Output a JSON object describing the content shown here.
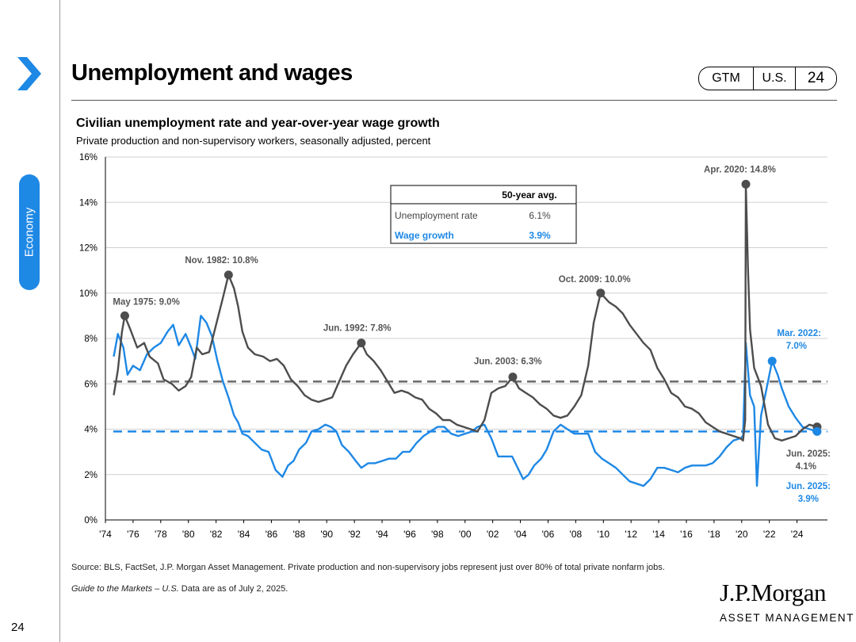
{
  "header": {
    "title": "Unemployment and wages",
    "section": "Economy",
    "tags": {
      "gtm": "GTM",
      "region": "U.S.",
      "page": "24"
    }
  },
  "chart_data": {
    "type": "line",
    "title": "Civilian unemployment rate and year-over-year wage growth",
    "subtitle": "Private production and non-supervisory workers, seasonally adjusted, percent",
    "xlabel": "",
    "ylabel": "",
    "xlim": [
      1974,
      2026.2
    ],
    "ylim": [
      0,
      16
    ],
    "y_ticks": [
      0,
      2,
      4,
      6,
      8,
      10,
      12,
      14,
      16
    ],
    "y_tick_labels": [
      "0%",
      "2%",
      "4%",
      "6%",
      "8%",
      "10%",
      "12%",
      "14%",
      "16%"
    ],
    "x_tick_labels": [
      "'74",
      "'76",
      "'78",
      "'80",
      "'82",
      "'84",
      "'86",
      "'88",
      "'90",
      "'92",
      "'94",
      "'96",
      "'98",
      "'00",
      "'02",
      "'04",
      "'06",
      "'08",
      "'10",
      "'12",
      "'14",
      "'16",
      "'18",
      "'20",
      "'22",
      "'24"
    ],
    "x_tick_years": [
      1974,
      1976,
      1978,
      1980,
      1982,
      1984,
      1986,
      1988,
      1990,
      1992,
      1994,
      1996,
      1998,
      2000,
      2002,
      2004,
      2006,
      2008,
      2010,
      2012,
      2014,
      2016,
      2018,
      2020,
      2022,
      2024
    ],
    "grid": true,
    "colors": {
      "unemployment": "#4d4d4d",
      "wages": "#1e88e5"
    },
    "series": [
      {
        "name": "Unemployment rate",
        "points": [
          [
            1974.6,
            5.5
          ],
          [
            1974.9,
            6.6
          ],
          [
            1975.2,
            8.3
          ],
          [
            1975.4,
            9.0
          ],
          [
            1975.8,
            8.4
          ],
          [
            1976.3,
            7.6
          ],
          [
            1976.8,
            7.8
          ],
          [
            1977.2,
            7.2
          ],
          [
            1977.8,
            6.9
          ],
          [
            1978.2,
            6.2
          ],
          [
            1978.8,
            6.0
          ],
          [
            1979.3,
            5.7
          ],
          [
            1979.8,
            5.9
          ],
          [
            1980.2,
            6.3
          ],
          [
            1980.6,
            7.6
          ],
          [
            1981.0,
            7.3
          ],
          [
            1981.5,
            7.4
          ],
          [
            1982.0,
            8.6
          ],
          [
            1982.5,
            9.8
          ],
          [
            1982.9,
            10.8
          ],
          [
            1983.3,
            10.2
          ],
          [
            1983.6,
            9.4
          ],
          [
            1983.9,
            8.3
          ],
          [
            1984.3,
            7.6
          ],
          [
            1984.8,
            7.3
          ],
          [
            1985.4,
            7.2
          ],
          [
            1985.9,
            7.0
          ],
          [
            1986.4,
            7.1
          ],
          [
            1986.9,
            6.8
          ],
          [
            1987.4,
            6.2
          ],
          [
            1987.9,
            5.9
          ],
          [
            1988.4,
            5.5
          ],
          [
            1988.9,
            5.3
          ],
          [
            1989.4,
            5.2
          ],
          [
            1989.9,
            5.3
          ],
          [
            1990.4,
            5.4
          ],
          [
            1990.9,
            6.1
          ],
          [
            1991.4,
            6.8
          ],
          [
            1991.9,
            7.3
          ],
          [
            1992.5,
            7.8
          ],
          [
            1992.9,
            7.3
          ],
          [
            1993.4,
            7.0
          ],
          [
            1993.9,
            6.6
          ],
          [
            1994.4,
            6.1
          ],
          [
            1994.9,
            5.6
          ],
          [
            1995.4,
            5.7
          ],
          [
            1995.9,
            5.6
          ],
          [
            1996.4,
            5.4
          ],
          [
            1996.9,
            5.3
          ],
          [
            1997.4,
            4.9
          ],
          [
            1997.9,
            4.7
          ],
          [
            1998.4,
            4.4
          ],
          [
            1998.9,
            4.4
          ],
          [
            1999.4,
            4.2
          ],
          [
            1999.9,
            4.1
          ],
          [
            2000.4,
            4.0
          ],
          [
            2000.9,
            3.9
          ],
          [
            2001.4,
            4.4
          ],
          [
            2001.9,
            5.6
          ],
          [
            2002.4,
            5.8
          ],
          [
            2002.9,
            5.9
          ],
          [
            2003.45,
            6.3
          ],
          [
            2003.9,
            5.8
          ],
          [
            2004.4,
            5.6
          ],
          [
            2004.9,
            5.4
          ],
          [
            2005.4,
            5.1
          ],
          [
            2005.9,
            4.9
          ],
          [
            2006.4,
            4.6
          ],
          [
            2006.9,
            4.5
          ],
          [
            2007.4,
            4.6
          ],
          [
            2007.9,
            5.0
          ],
          [
            2008.4,
            5.5
          ],
          [
            2008.9,
            6.8
          ],
          [
            2009.3,
            8.7
          ],
          [
            2009.8,
            10.0
          ],
          [
            2010.4,
            9.6
          ],
          [
            2010.9,
            9.4
          ],
          [
            2011.4,
            9.1
          ],
          [
            2011.9,
            8.6
          ],
          [
            2012.4,
            8.2
          ],
          [
            2012.9,
            7.8
          ],
          [
            2013.4,
            7.5
          ],
          [
            2013.9,
            6.7
          ],
          [
            2014.4,
            6.2
          ],
          [
            2014.9,
            5.6
          ],
          [
            2015.4,
            5.4
          ],
          [
            2015.9,
            5.0
          ],
          [
            2016.4,
            4.9
          ],
          [
            2016.9,
            4.7
          ],
          [
            2017.4,
            4.3
          ],
          [
            2017.9,
            4.1
          ],
          [
            2018.4,
            3.9
          ],
          [
            2018.9,
            3.8
          ],
          [
            2019.4,
            3.7
          ],
          [
            2019.9,
            3.6
          ],
          [
            2020.1,
            3.5
          ],
          [
            2020.25,
            4.4
          ],
          [
            2020.3,
            14.8
          ],
          [
            2020.45,
            11.1
          ],
          [
            2020.6,
            8.4
          ],
          [
            2020.9,
            6.7
          ],
          [
            2021.4,
            5.9
          ],
          [
            2021.9,
            4.2
          ],
          [
            2022.4,
            3.6
          ],
          [
            2022.9,
            3.5
          ],
          [
            2023.4,
            3.6
          ],
          [
            2023.9,
            3.7
          ],
          [
            2024.4,
            4.0
          ],
          [
            2024.9,
            4.2
          ],
          [
            2025.45,
            4.1
          ]
        ]
      },
      {
        "name": "Wage growth",
        "points": [
          [
            1974.6,
            7.2
          ],
          [
            1974.9,
            8.2
          ],
          [
            1975.3,
            7.6
          ],
          [
            1975.6,
            6.4
          ],
          [
            1976.0,
            6.8
          ],
          [
            1976.5,
            6.6
          ],
          [
            1977.0,
            7.3
          ],
          [
            1977.5,
            7.6
          ],
          [
            1978.0,
            7.8
          ],
          [
            1978.5,
            8.3
          ],
          [
            1978.9,
            8.6
          ],
          [
            1979.3,
            7.7
          ],
          [
            1979.8,
            8.2
          ],
          [
            1980.2,
            7.6
          ],
          [
            1980.5,
            7.1
          ],
          [
            1980.9,
            9.0
          ],
          [
            1981.3,
            8.7
          ],
          [
            1981.7,
            8.1
          ],
          [
            1982.1,
            7.0
          ],
          [
            1982.5,
            6.1
          ],
          [
            1982.9,
            5.4
          ],
          [
            1983.3,
            4.6
          ],
          [
            1983.6,
            4.3
          ],
          [
            1983.9,
            3.8
          ],
          [
            1984.3,
            3.7
          ],
          [
            1984.8,
            3.4
          ],
          [
            1985.3,
            3.1
          ],
          [
            1985.8,
            3.0
          ],
          [
            1986.3,
            2.2
          ],
          [
            1986.8,
            1.9
          ],
          [
            1987.2,
            2.4
          ],
          [
            1987.6,
            2.6
          ],
          [
            1988.0,
            3.1
          ],
          [
            1988.5,
            3.4
          ],
          [
            1988.9,
            3.9
          ],
          [
            1989.4,
            4.0
          ],
          [
            1989.9,
            4.2
          ],
          [
            1990.3,
            4.1
          ],
          [
            1990.7,
            3.9
          ],
          [
            1991.1,
            3.3
          ],
          [
            1991.6,
            3.0
          ],
          [
            1992.1,
            2.6
          ],
          [
            1992.5,
            2.3
          ],
          [
            1993.0,
            2.5
          ],
          [
            1993.5,
            2.5
          ],
          [
            1994.0,
            2.6
          ],
          [
            1994.5,
            2.7
          ],
          [
            1995.0,
            2.7
          ],
          [
            1995.5,
            3.0
          ],
          [
            1996.0,
            3.0
          ],
          [
            1996.5,
            3.4
          ],
          [
            1997.0,
            3.7
          ],
          [
            1997.5,
            3.9
          ],
          [
            1998.0,
            4.1
          ],
          [
            1998.5,
            4.1
          ],
          [
            1999.0,
            3.8
          ],
          [
            1999.5,
            3.7
          ],
          [
            2000.0,
            3.8
          ],
          [
            2000.5,
            3.9
          ],
          [
            2000.9,
            4.1
          ],
          [
            2001.4,
            4.2
          ],
          [
            2001.9,
            3.6
          ],
          [
            2002.4,
            2.8
          ],
          [
            2002.9,
            2.8
          ],
          [
            2003.4,
            2.8
          ],
          [
            2003.8,
            2.3
          ],
          [
            2004.2,
            1.8
          ],
          [
            2004.6,
            2.0
          ],
          [
            2005.0,
            2.4
          ],
          [
            2005.5,
            2.7
          ],
          [
            2005.9,
            3.1
          ],
          [
            2006.4,
            3.9
          ],
          [
            2006.9,
            4.2
          ],
          [
            2007.4,
            4.0
          ],
          [
            2007.9,
            3.8
          ],
          [
            2008.4,
            3.8
          ],
          [
            2008.9,
            3.8
          ],
          [
            2009.4,
            3.0
          ],
          [
            2009.9,
            2.7
          ],
          [
            2010.4,
            2.5
          ],
          [
            2010.9,
            2.3
          ],
          [
            2011.4,
            2.0
          ],
          [
            2011.9,
            1.7
          ],
          [
            2012.4,
            1.6
          ],
          [
            2012.9,
            1.5
          ],
          [
            2013.4,
            1.8
          ],
          [
            2013.9,
            2.3
          ],
          [
            2014.4,
            2.3
          ],
          [
            2014.9,
            2.2
          ],
          [
            2015.4,
            2.1
          ],
          [
            2015.9,
            2.3
          ],
          [
            2016.4,
            2.4
          ],
          [
            2016.9,
            2.4
          ],
          [
            2017.4,
            2.4
          ],
          [
            2017.9,
            2.5
          ],
          [
            2018.4,
            2.8
          ],
          [
            2018.9,
            3.2
          ],
          [
            2019.4,
            3.5
          ],
          [
            2019.9,
            3.6
          ],
          [
            2020.1,
            3.7
          ],
          [
            2020.3,
            7.8
          ],
          [
            2020.6,
            5.5
          ],
          [
            2020.9,
            5.0
          ],
          [
            2021.1,
            1.5
          ],
          [
            2021.4,
            4.6
          ],
          [
            2021.8,
            5.8
          ],
          [
            2022.2,
            7.0
          ],
          [
            2022.6,
            6.4
          ],
          [
            2022.9,
            5.8
          ],
          [
            2023.4,
            5.0
          ],
          [
            2023.9,
            4.5
          ],
          [
            2024.4,
            4.1
          ],
          [
            2024.9,
            4.0
          ],
          [
            2025.45,
            3.9
          ]
        ]
      }
    ],
    "averages": [
      {
        "name": "Unemployment rate",
        "value": 6.1,
        "label": "6.1%"
      },
      {
        "name": "Wage growth",
        "value": 3.9,
        "label": "3.9%"
      }
    ],
    "avg_table_header": "50-year avg.",
    "annotations": [
      {
        "series": "Unemployment rate",
        "x": 1975.4,
        "y": 9.0,
        "text": "May 1975: 9.0%"
      },
      {
        "series": "Unemployment rate",
        "x": 1982.9,
        "y": 10.8,
        "text": "Nov. 1982: 10.8%"
      },
      {
        "series": "Unemployment rate",
        "x": 1992.5,
        "y": 7.8,
        "text": "Jun. 1992: 7.8%"
      },
      {
        "series": "Unemployment rate",
        "x": 2003.45,
        "y": 6.3,
        "text": "Jun. 2003: 6.3%"
      },
      {
        "series": "Unemployment rate",
        "x": 2009.8,
        "y": 10.0,
        "text": "Oct. 2009: 10.0%"
      },
      {
        "series": "Unemployment rate",
        "x": 2020.3,
        "y": 14.8,
        "text": "Apr. 2020: 14.8%"
      },
      {
        "series": "Wage growth",
        "x": 2022.2,
        "y": 7.0,
        "text": [
          "Mar. 2022:",
          "7.0%"
        ]
      },
      {
        "series": "Unemployment rate",
        "x": 2025.45,
        "y": 4.1,
        "text": [
          "Jun. 2025:",
          "4.1%"
        ]
      },
      {
        "series": "Wage growth",
        "x": 2025.45,
        "y": 3.9,
        "text": [
          "Jun. 2025:",
          "3.9%"
        ]
      }
    ]
  },
  "footer": {
    "source": "Source: BLS, FactSet, J.P. Morgan Asset Management. Private production and non-supervisory jobs represent just over 80% of total private nonfarm jobs.",
    "guide_title": "Guide to the Markets – U.S.",
    "guide_date": " Data are as of July 2, 2025.",
    "page_number": "24",
    "logo_main": "J.P.Morgan",
    "logo_sub": "ASSET MANAGEMENT"
  }
}
